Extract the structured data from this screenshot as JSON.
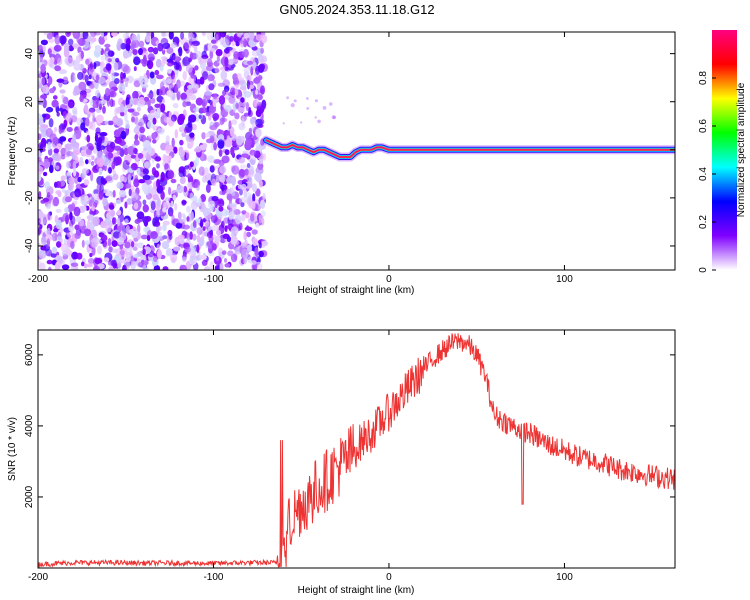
{
  "title": "GN05.2024.353.11.18.G12",
  "chart_data": [
    {
      "type": "heatmap",
      "xlabel": "Height of straight line (km)",
      "ylabel": "Frequency (Hz)",
      "xlim": [
        -200,
        163
      ],
      "ylim": [
        -50,
        49
      ],
      "xticks": [
        -200,
        -100,
        0,
        100
      ],
      "yticks": [
        -40,
        -20,
        0,
        20,
        40
      ],
      "noise_region": {
        "x": [
          -200,
          -71
        ],
        "y": [
          -50,
          49
        ]
      },
      "ridge": {
        "x": [
          -70,
          -67,
          -64,
          -61,
          -58,
          -55,
          -52,
          -49,
          -46,
          -43,
          -40,
          -37,
          -34,
          -31,
          -28,
          -25,
          -22,
          -19,
          -16,
          -13,
          -10,
          -7,
          -4,
          0,
          5,
          10,
          20,
          30,
          40,
          60,
          80,
          100,
          120,
          140,
          163
        ],
        "y": [
          4,
          3,
          2,
          1,
          1,
          2,
          1,
          1,
          0,
          -1,
          0,
          0,
          -1,
          -2,
          -3,
          -3,
          -3,
          -1,
          0,
          0,
          0,
          1,
          1,
          0,
          0,
          0,
          0,
          0,
          0,
          0,
          0,
          0,
          0,
          0,
          0
        ]
      },
      "colorbar": {
        "label": "Normalized spectral amplitude",
        "ticks": [
          0.0,
          0.2,
          0.4,
          0.6,
          0.8
        ],
        "range": [
          0,
          1
        ],
        "colors": [
          "#ffffff",
          "#8000ff",
          "#0000ff",
          "#00ffff",
          "#00ff00",
          "#ffff00",
          "#ff0000",
          "#ff0080"
        ]
      }
    },
    {
      "type": "line",
      "xlabel": "Height of straight line (km)",
      "ylabel": "SNR (10 * v/v)",
      "xlim": [
        -200,
        163
      ],
      "ylim": [
        0,
        6700
      ],
      "xticks": [
        -200,
        -100,
        0,
        100
      ],
      "yticks": [
        2000,
        4000,
        6000
      ],
      "color": "#ee3333",
      "series": [
        {
          "x": [
            -200,
            -180,
            -160,
            -140,
            -120,
            -100,
            -80,
            -64,
            -60,
            -57,
            -54,
            -50,
            -45,
            -40,
            -35,
            -30,
            -25,
            -20,
            -15,
            -10,
            -5,
            0,
            5,
            10,
            15,
            20,
            25,
            30,
            35,
            40,
            45,
            50,
            55,
            60,
            70,
            80,
            90,
            100,
            110,
            120,
            130,
            140,
            150,
            163
          ],
          "y": [
            100,
            150,
            150,
            140,
            140,
            130,
            150,
            150,
            300,
            1200,
            1500,
            1800,
            2000,
            2300,
            2500,
            2800,
            3000,
            3300,
            3600,
            3800,
            4100,
            4400,
            4700,
            5000,
            5300,
            5600,
            5900,
            6100,
            6300,
            6400,
            6300,
            6000,
            5400,
            4300,
            4000,
            3800,
            3500,
            3300,
            3100,
            3000,
            2800,
            2700,
            2600,
            2500
          ]
        }
      ]
    }
  ]
}
